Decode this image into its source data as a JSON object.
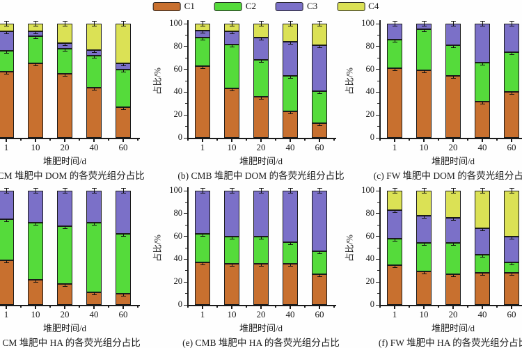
{
  "figure": {
    "background": "#fefefe",
    "axis_color": "#1a1a1a",
    "text_color": "#1c1c1c",
    "segment_border_color": "#1b1b1b"
  },
  "legend": {
    "items": [
      {
        "label": "C1",
        "color": "#c8702f"
      },
      {
        "label": "C2",
        "color": "#55db3b"
      },
      {
        "label": "C3",
        "color": "#7b70c8"
      },
      {
        "label": "C4",
        "color": "#dbe155"
      }
    ]
  },
  "axis": {
    "x_label": "堆肥时间/d",
    "y_label": "占比/%",
    "x_ticks": [
      "1",
      "10",
      "20",
      "40",
      "60"
    ],
    "y_ticks": [
      "0",
      "20",
      "40",
      "60",
      "80",
      "100"
    ]
  },
  "chart_data": [
    {
      "id": "a",
      "type": "bar",
      "stacked": true,
      "caption": "(a) CM 堆肥中 DOM 的各荧光组分占比",
      "categories": [
        "1",
        "10",
        "20",
        "40",
        "60"
      ],
      "xlabel": "堆肥时间/d",
      "ylabel": "占比/%",
      "ylim": [
        0,
        100
      ],
      "series": [
        {
          "name": "C1",
          "values": [
            58,
            65,
            56,
            44,
            27
          ]
        },
        {
          "name": "C2",
          "values": [
            18,
            24,
            22,
            28,
            33
          ]
        },
        {
          "name": "C3",
          "values": [
            17,
            4,
            5,
            5,
            5
          ]
        },
        {
          "name": "C4",
          "values": [
            7,
            7,
            17,
            23,
            35
          ]
        }
      ]
    },
    {
      "id": "b",
      "type": "bar",
      "stacked": true,
      "caption": "(b) CMB 堆肥中 DOM 的各荧光组分占比",
      "categories": [
        "1",
        "10",
        "20",
        "40",
        "60"
      ],
      "xlabel": "堆肥时间/d",
      "ylabel": "占比/%",
      "ylim": [
        0,
        100
      ],
      "series": [
        {
          "name": "C1",
          "values": [
            63,
            43,
            36,
            23,
            13
          ]
        },
        {
          "name": "C2",
          "values": [
            25,
            39,
            32,
            31,
            28
          ]
        },
        {
          "name": "C3",
          "values": [
            6,
            11,
            20,
            30,
            40
          ]
        },
        {
          "name": "C4",
          "values": [
            6,
            7,
            12,
            16,
            19
          ]
        }
      ]
    },
    {
      "id": "c",
      "type": "bar",
      "stacked": true,
      "caption": "(c) FW 堆肥中 DOM 的各荧光组分占比",
      "categories": [
        "1",
        "10",
        "20",
        "40",
        "60"
      ],
      "xlabel": "堆肥时间/d",
      "ylabel": "占比/%",
      "ylim": [
        0,
        100
      ],
      "series": [
        {
          "name": "C1",
          "values": [
            61,
            59,
            54,
            32,
            40
          ]
        },
        {
          "name": "C2",
          "values": [
            25,
            36,
            27,
            34,
            35
          ]
        },
        {
          "name": "C3",
          "values": [
            14,
            5,
            19,
            34,
            25
          ]
        }
      ]
    },
    {
      "id": "d",
      "type": "bar",
      "stacked": true,
      "caption": "(d) CM 堆肥中 HA 的各荧光组分占比",
      "categories": [
        "1",
        "10",
        "20",
        "40",
        "60"
      ],
      "xlabel": "堆肥时间/d",
      "ylabel": "占比/%",
      "ylim": [
        0,
        100
      ],
      "series": [
        {
          "name": "C1",
          "values": [
            39,
            22,
            18,
            11,
            10
          ]
        },
        {
          "name": "C2",
          "values": [
            36,
            50,
            51,
            61,
            52
          ]
        },
        {
          "name": "C3",
          "values": [
            25,
            28,
            31,
            28,
            38
          ]
        }
      ]
    },
    {
      "id": "e",
      "type": "bar",
      "stacked": true,
      "caption": "(e) CMB 堆肥中 HA 的各荧光组分占比",
      "categories": [
        "1",
        "10",
        "20",
        "40",
        "60"
      ],
      "xlabel": "堆肥时间/d",
      "ylabel": "占比/%",
      "ylim": [
        0,
        100
      ],
      "series": [
        {
          "name": "C1",
          "values": [
            37,
            36,
            36,
            36,
            27
          ]
        },
        {
          "name": "C2",
          "values": [
            25,
            24,
            24,
            19,
            20
          ]
        },
        {
          "name": "C3",
          "values": [
            38,
            40,
            40,
            45,
            53
          ]
        }
      ]
    },
    {
      "id": "f",
      "type": "bar",
      "stacked": true,
      "caption": "(f) FW 堆肥中 HA 的各荧光组分占比",
      "categories": [
        "1",
        "10",
        "20",
        "40",
        "60"
      ],
      "xlabel": "堆肥时间/d",
      "ylabel": "占比/%",
      "ylim": [
        0,
        100
      ],
      "series": [
        {
          "name": "C1",
          "values": [
            35,
            29,
            27,
            28,
            28
          ]
        },
        {
          "name": "C2",
          "values": [
            23,
            25,
            27,
            16,
            9
          ]
        },
        {
          "name": "C3",
          "values": [
            25,
            24,
            22,
            23,
            23
          ]
        },
        {
          "name": "C4",
          "values": [
            17,
            22,
            24,
            33,
            40
          ]
        }
      ]
    }
  ]
}
